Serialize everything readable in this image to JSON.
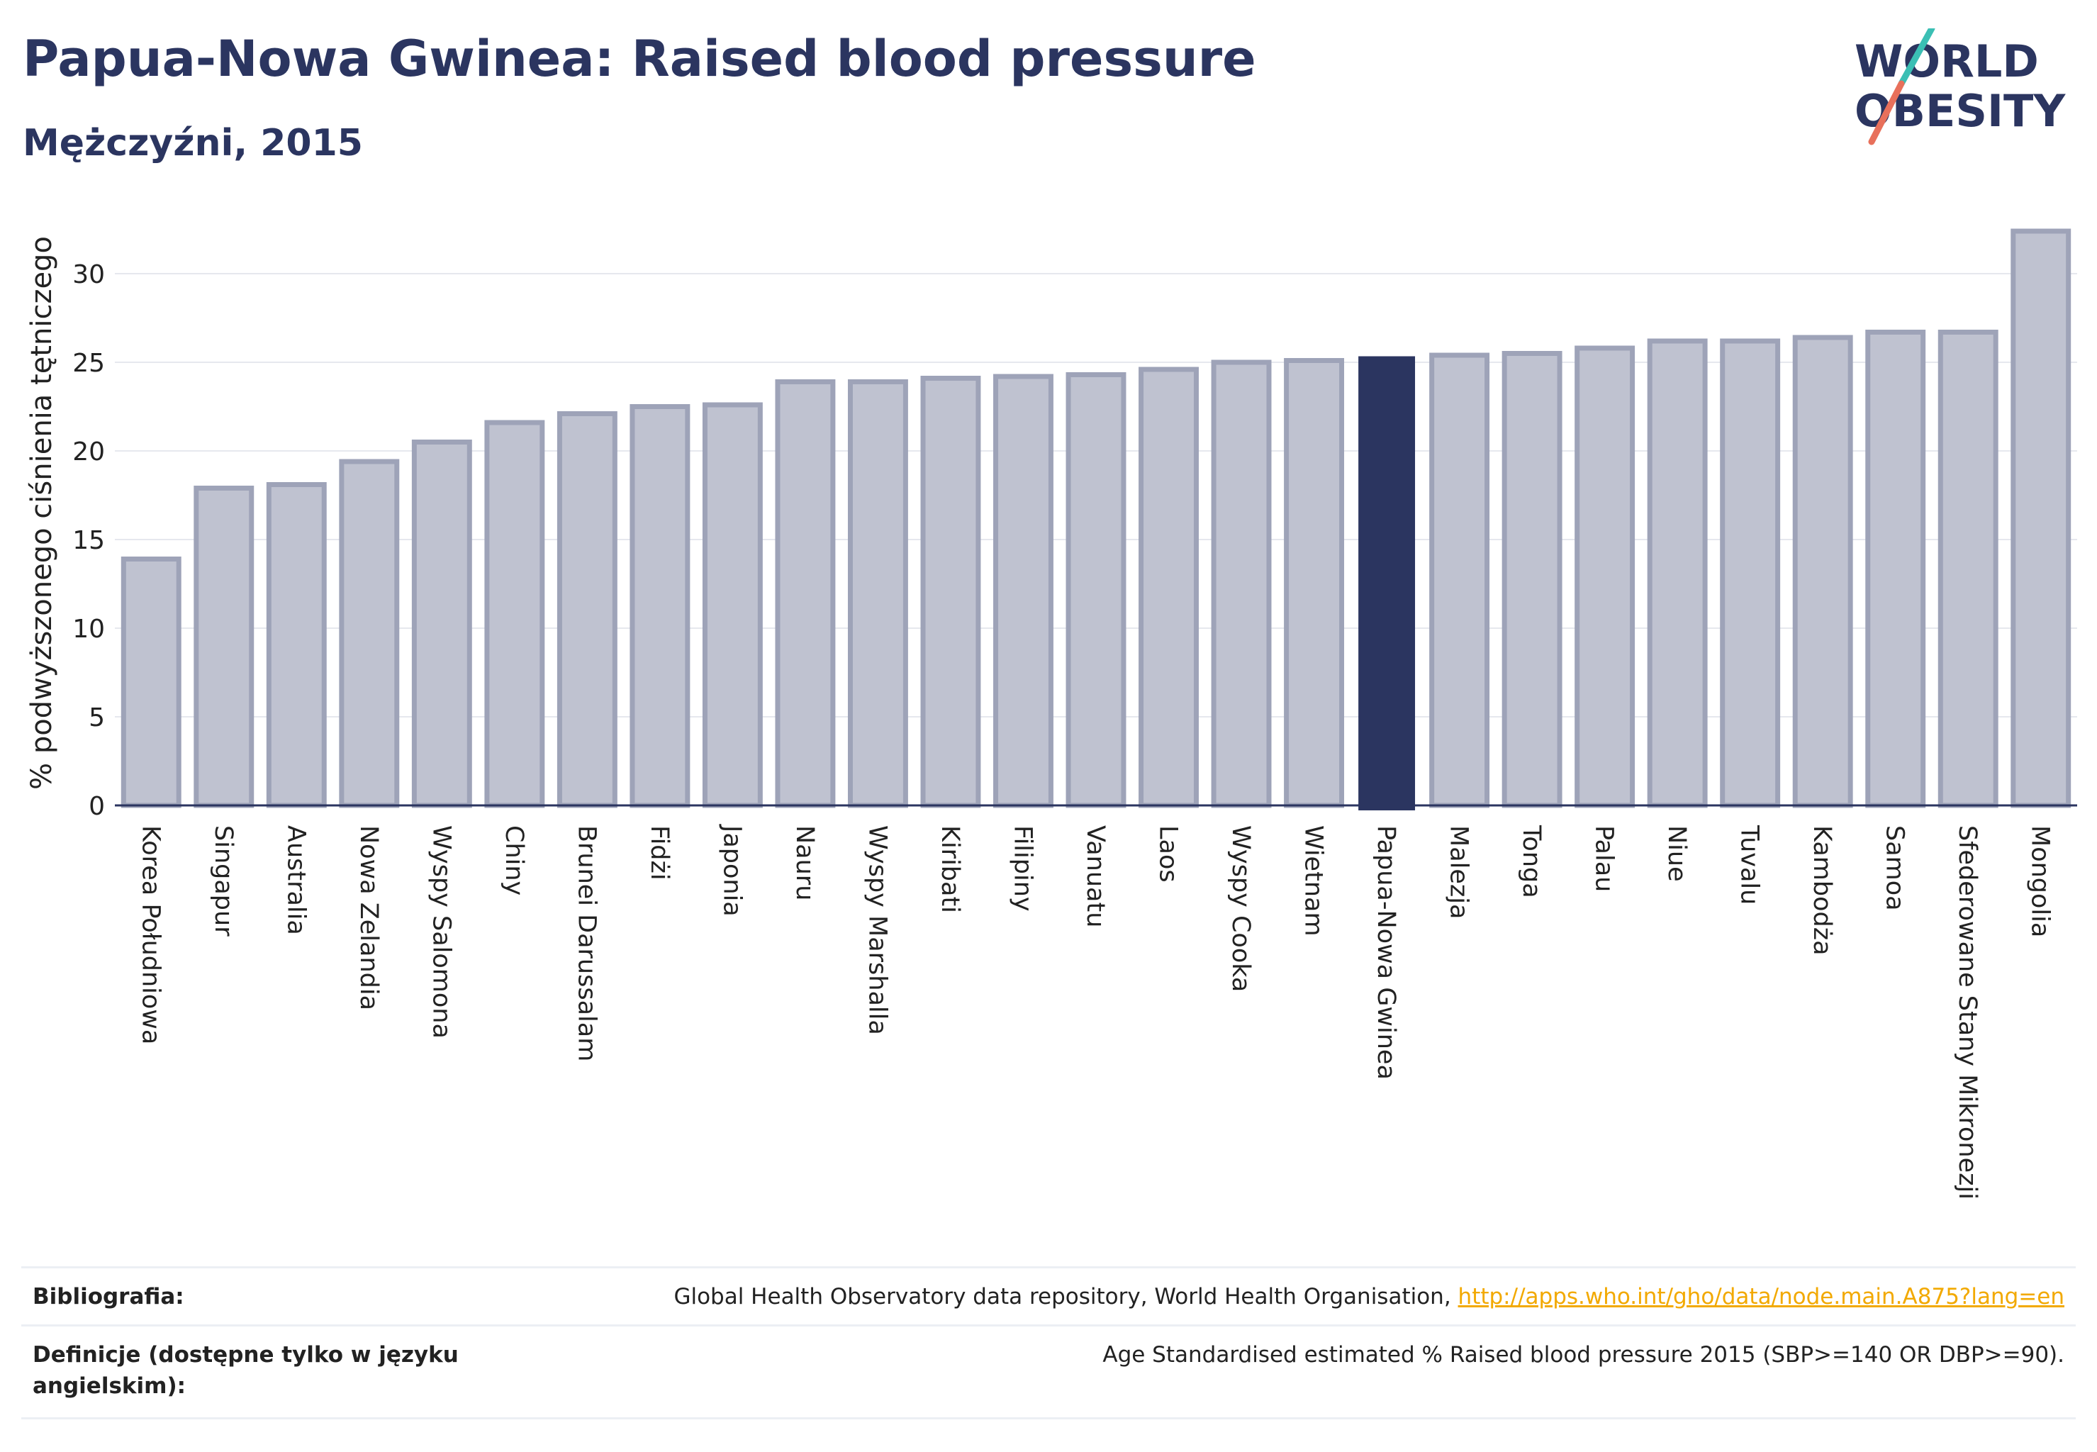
{
  "header": {
    "title": "Papua-Nowa Gwinea: Raised blood pressure",
    "subtitle": "Mężczyźni, 2015"
  },
  "logo": {
    "line1": "WORLD",
    "line2": "OBESITY"
  },
  "colors": {
    "bar": "#bfc2d0",
    "bar_border": "#9ea3b8",
    "highlight": "#2b3560",
    "text": "#2b3560"
  },
  "chart_data": {
    "type": "bar",
    "ylabel": "% podwyższonego ciśnienia tętniczego",
    "ylim": [
      0,
      33
    ],
    "yticks": [
      0,
      5,
      10,
      15,
      20,
      25,
      30
    ],
    "grid": true,
    "highlight": "Papua-Nowa Gwinea",
    "categories": [
      "Korea Południowa",
      "Singapur",
      "Australia",
      "Nowa Zelandia",
      "Wyspy Salomona",
      "Chiny",
      "Brunei Darussalam",
      "Fidżi",
      "Japonia",
      "Nauru",
      "Wyspy Marshalla",
      "Kiribati",
      "Filipiny",
      "Vanuatu",
      "Laos",
      "Wyspy Cooka",
      "Wietnam",
      "Papua-Nowa Gwinea",
      "Malezja",
      "Tonga",
      "Palau",
      "Niue",
      "Tuvalu",
      "Kambodża",
      "Samoa",
      "Sfederowane Stany Mikronezji",
      "Mongolia"
    ],
    "values": [
      13.9,
      17.9,
      18.1,
      19.4,
      20.5,
      21.6,
      22.1,
      22.5,
      22.6,
      23.9,
      23.9,
      24.1,
      24.2,
      24.3,
      24.6,
      25.0,
      25.1,
      25.3,
      25.4,
      25.5,
      25.8,
      26.2,
      26.2,
      26.4,
      26.7,
      26.7,
      32.4
    ]
  },
  "footer": {
    "bibliography_label": "Bibliografia:",
    "bibliography_text": "Global Health Observatory data repository, World Health Organisation, ",
    "bibliography_link": "http://apps.who.int/gho/data/node.main.A875?lang=en",
    "definition_label": "Definicje (dostępne tylko w języku angielskim):",
    "definition_text": "Age Standardised estimated % Raised blood pressure 2015 (SBP>=140 OR DBP>=90)."
  }
}
